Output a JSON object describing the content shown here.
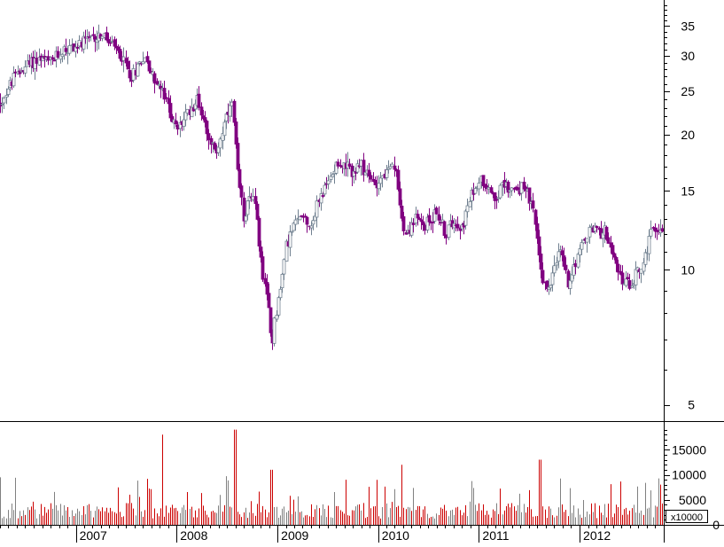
{
  "colors": {
    "up_candle": "#708090",
    "down_candle": "#800080",
    "volume_up": "#808080",
    "volume_down": "#cc0000",
    "axis": "#000000",
    "background": "#ffffff"
  },
  "chart_data": [
    {
      "type": "candlestick",
      "title": "",
      "scale": "log",
      "ylim": [
        4.6,
        40
      ],
      "yticks": [
        5,
        10,
        15,
        20,
        25,
        30,
        35
      ],
      "ytick_labels": [
        "5",
        "10",
        "15",
        "20",
        "25",
        "30",
        "35"
      ],
      "x_range": [
        "2006-04",
        "2012-11"
      ],
      "xticks": [
        "2007",
        "2008",
        "2009",
        "2010",
        "2011",
        "2012"
      ],
      "grid": false,
      "price_path": [
        [
          "2006-04-01",
          23.5
        ],
        [
          "2006-05-15",
          26.5
        ],
        [
          "2006-07-01",
          28.5
        ],
        [
          "2006-08-15",
          29.5
        ],
        [
          "2006-10-01",
          29.0
        ],
        [
          "2006-11-15",
          31.0
        ],
        [
          "2007-01-01",
          31.5
        ],
        [
          "2007-02-15",
          32.5
        ],
        [
          "2007-04-01",
          33.5
        ],
        [
          "2007-05-15",
          31.5
        ],
        [
          "2007-06-20",
          29.5
        ],
        [
          "2007-07-20",
          27.0
        ],
        [
          "2007-09-01",
          30.0
        ],
        [
          "2007-10-01",
          27.5
        ],
        [
          "2007-11-15",
          24.5
        ],
        [
          "2008-01-01",
          20.5
        ],
        [
          "2008-02-01",
          22.0
        ],
        [
          "2008-03-15",
          24.0
        ],
        [
          "2008-04-15",
          21.0
        ],
        [
          "2008-05-20",
          18.0
        ],
        [
          "2008-06-20",
          21.0
        ],
        [
          "2008-07-20",
          23.5
        ],
        [
          "2008-08-10",
          16.0
        ],
        [
          "2008-09-01",
          13.0
        ],
        [
          "2008-09-20",
          15.0
        ],
        [
          "2008-10-10",
          14.0
        ],
        [
          "2008-10-25",
          11.5
        ],
        [
          "2008-11-10",
          9.5
        ],
        [
          "2008-12-01",
          8.0
        ],
        [
          "2008-12-10",
          6.7
        ],
        [
          "2008-12-20",
          7.8
        ],
        [
          "2009-01-10",
          9.0
        ],
        [
          "2009-02-01",
          11.5
        ],
        [
          "2009-03-01",
          12.5
        ],
        [
          "2009-04-01",
          13.5
        ],
        [
          "2009-05-01",
          12.5
        ],
        [
          "2009-06-01",
          14.5
        ],
        [
          "2009-07-01",
          15.5
        ],
        [
          "2009-08-01",
          17.5
        ],
        [
          "2009-09-01",
          17.0
        ],
        [
          "2009-10-01",
          16.5
        ],
        [
          "2009-11-01",
          17.0
        ],
        [
          "2009-12-15",
          15.5
        ],
        [
          "2010-02-01",
          16.5
        ],
        [
          "2010-03-01",
          17.0
        ],
        [
          "2010-03-20",
          14.0
        ],
        [
          "2010-04-10",
          12.0
        ],
        [
          "2010-05-15",
          13.0
        ],
        [
          "2010-06-15",
          12.5
        ],
        [
          "2010-08-01",
          13.5
        ],
        [
          "2010-09-01",
          12.0
        ],
        [
          "2010-10-01",
          13.0
        ],
        [
          "2010-11-01",
          12.5
        ],
        [
          "2010-12-01",
          14.5
        ],
        [
          "2011-01-01",
          16.0
        ],
        [
          "2011-02-01",
          15.5
        ],
        [
          "2011-03-01",
          14.5
        ],
        [
          "2011-04-01",
          15.5
        ],
        [
          "2011-05-15",
          15.0
        ],
        [
          "2011-06-15",
          15.5
        ],
        [
          "2011-07-15",
          13.5
        ],
        [
          "2011-08-05",
          11.0
        ],
        [
          "2011-08-20",
          9.5
        ],
        [
          "2011-09-10",
          9.0
        ],
        [
          "2011-10-01",
          10.5
        ],
        [
          "2011-10-25",
          11.0
        ],
        [
          "2011-11-20",
          9.3
        ],
        [
          "2011-12-15",
          10.5
        ],
        [
          "2012-01-15",
          11.5
        ],
        [
          "2012-02-15",
          12.5
        ],
        [
          "2012-03-15",
          12.0
        ],
        [
          "2012-04-01",
          12.5
        ],
        [
          "2012-05-01",
          10.5
        ],
        [
          "2012-06-01",
          9.5
        ],
        [
          "2012-07-01",
          9.2
        ],
        [
          "2012-07-20",
          9.8
        ],
        [
          "2012-08-15",
          10.2
        ],
        [
          "2012-09-15",
          12.0
        ],
        [
          "2012-10-10",
          12.5
        ],
        [
          "2012-10-31",
          12.0
        ]
      ]
    },
    {
      "type": "bar",
      "title": "",
      "ylim": [
        0,
        20000
      ],
      "yticks": [
        0,
        5000,
        10000,
        15000
      ],
      "ytick_labels": [
        "0",
        "5000",
        "10000",
        "15000"
      ],
      "multiplier_label": "x10000",
      "baseline": 3500,
      "spikes": [
        [
          "2006-04-01",
          9500
        ],
        [
          "2007-11-10",
          18000
        ],
        [
          "2008-07-30",
          19000
        ],
        [
          "2008-12-10",
          11000
        ],
        [
          "2010-03-25",
          12000
        ],
        [
          "2011-08-10",
          13000
        ]
      ]
    }
  ]
}
